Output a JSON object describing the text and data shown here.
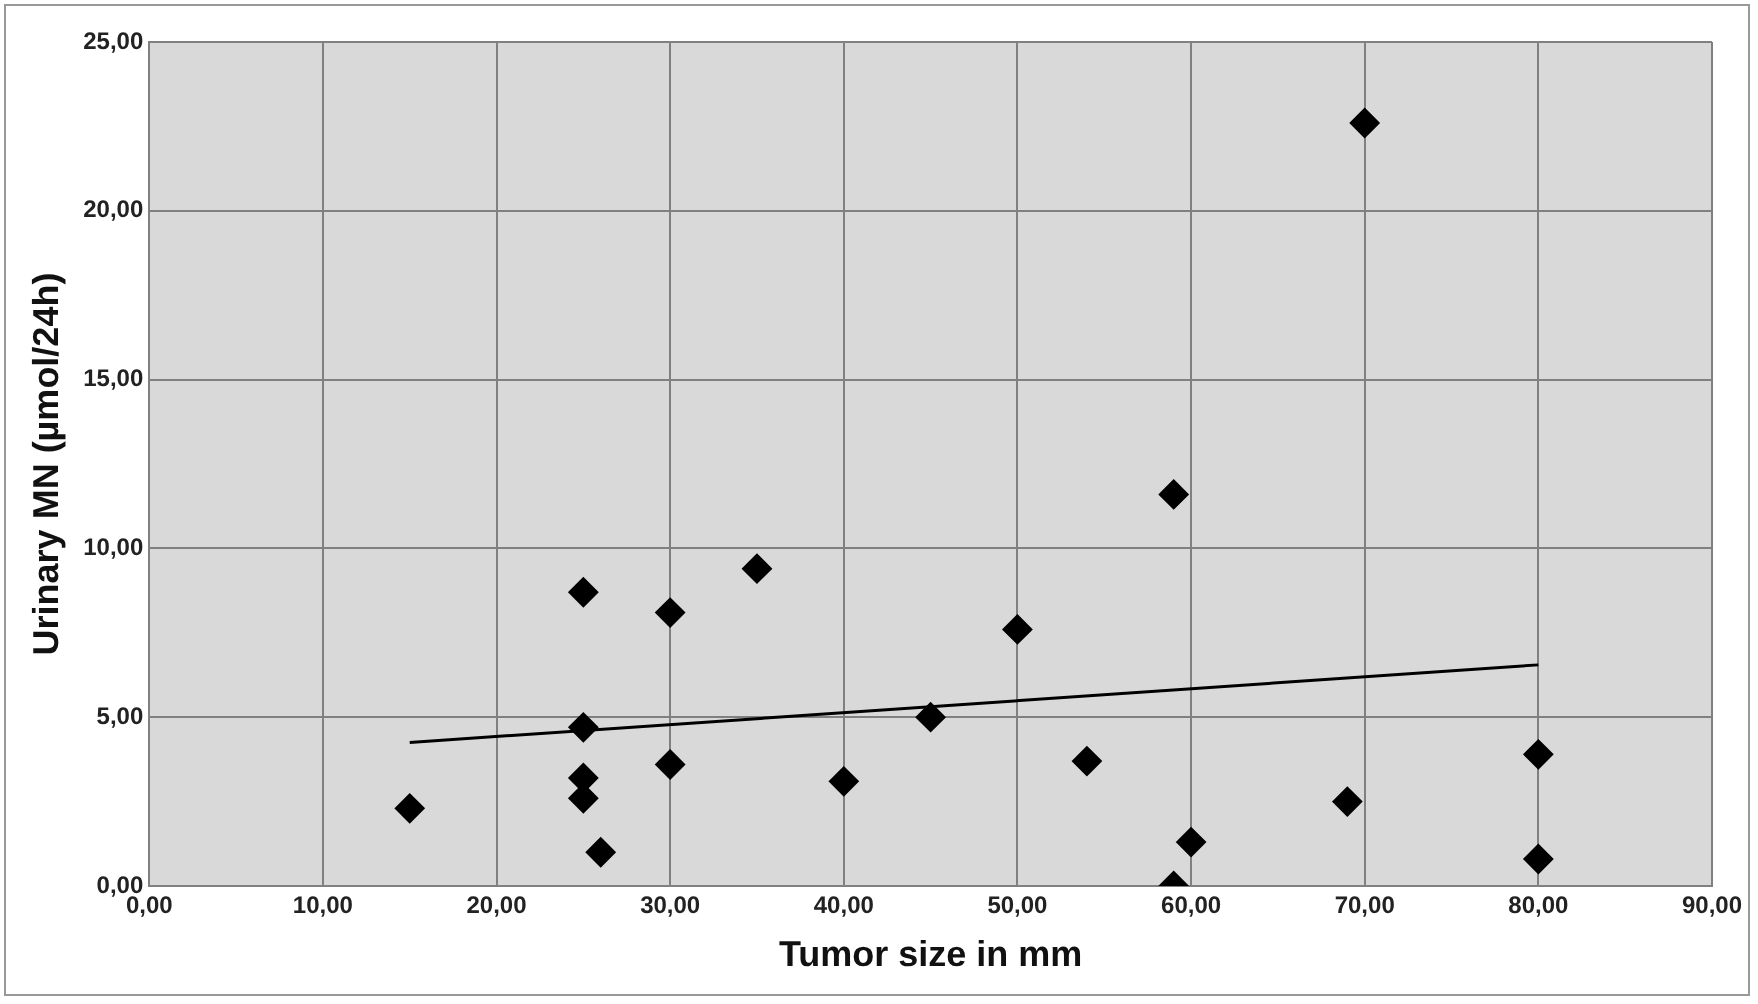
{
  "chart_data": {
    "type": "scatter",
    "xlabel": "Tumor size in mm",
    "ylabel": "Urinary MN (µmol/24h)",
    "marker": "diamond",
    "grid": true,
    "legend": false,
    "xlim": [
      0,
      90
    ],
    "ylim": [
      0,
      25
    ],
    "xticks": [
      {
        "value": 0,
        "label": "0,00"
      },
      {
        "value": 10,
        "label": "10,00"
      },
      {
        "value": 20,
        "label": "20,00"
      },
      {
        "value": 30,
        "label": "30,00"
      },
      {
        "value": 40,
        "label": "40,00"
      },
      {
        "value": 50,
        "label": "50,00"
      },
      {
        "value": 60,
        "label": "60,00"
      },
      {
        "value": 70,
        "label": "70,00"
      },
      {
        "value": 80,
        "label": "80,00"
      },
      {
        "value": 90,
        "label": "90,00"
      }
    ],
    "yticks": [
      {
        "value": 0,
        "label": "0,00"
      },
      {
        "value": 5,
        "label": "5,00"
      },
      {
        "value": 10,
        "label": "10,00"
      },
      {
        "value": 15,
        "label": "15,00"
      },
      {
        "value": 20,
        "label": "20,00"
      },
      {
        "value": 25,
        "label": "25,00"
      }
    ],
    "series": [
      {
        "color": "#000000",
        "x": [
          15,
          25,
          25,
          25,
          25,
          26,
          30,
          30,
          35,
          40,
          45,
          50,
          54,
          59,
          59,
          60,
          69,
          70,
          80,
          80
        ],
        "values": [
          2.3,
          8.7,
          4.7,
          3.2,
          2.6,
          1.0,
          8.1,
          3.6,
          9.4,
          3.1,
          5.0,
          7.6,
          3.7,
          11.6,
          0.0,
          1.3,
          2.5,
          22.6,
          3.9,
          0.8
        ]
      },
      {
        "type": "line",
        "color": "#000000",
        "marker": "none",
        "x": [
          15,
          80
        ],
        "values": [
          4.25,
          6.55
        ]
      }
    ]
  }
}
